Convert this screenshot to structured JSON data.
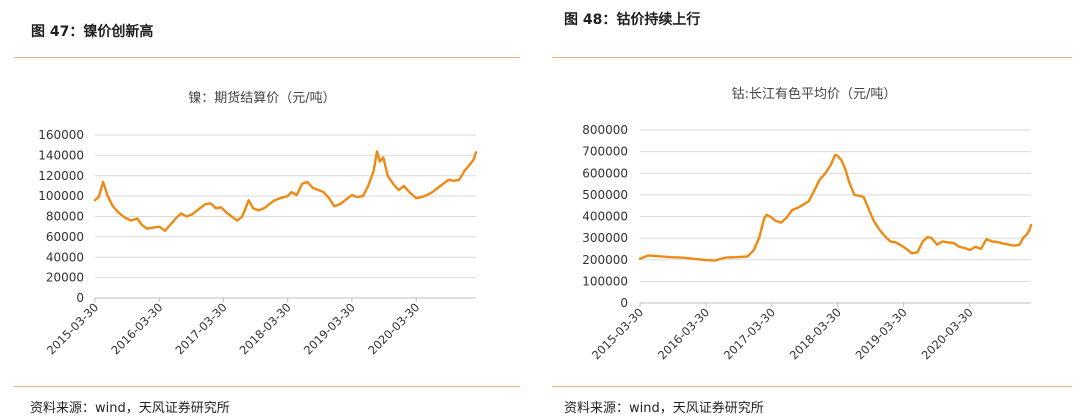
{
  "panels": [
    {
      "figure_title": "图 47：镍价创新高",
      "source": "资料来源：wind，天风证券研究所"
    },
    {
      "figure_title": "图 48：钴价持续上行",
      "source": "资料来源：wind，天风证券研究所"
    }
  ],
  "colors": {
    "series": "#ee8a14",
    "grid": "#d9d9d9",
    "rule": "#f0b27a"
  },
  "chart_data": [
    {
      "type": "line",
      "title": "镍：期货结算价（元/吨）",
      "xlabel": "",
      "ylabel": "",
      "ylim": [
        0,
        160000
      ],
      "yticks": [
        0,
        20000,
        40000,
        60000,
        80000,
        100000,
        120000,
        140000,
        160000
      ],
      "xticks": [
        "2015-03-30",
        "2016-03-30",
        "2017-03-30",
        "2018-03-30",
        "2019-03-30",
        "2020-03-30"
      ],
      "xlim": [
        "2015-03-30",
        "2021-03-05"
      ],
      "grid": true,
      "legend": "none",
      "series": [
        {
          "x": [
            "2015-03-30",
            "2015-04-20",
            "2015-05-15",
            "2015-06-10",
            "2015-07-10",
            "2015-08-10",
            "2015-09-15",
            "2015-10-20",
            "2015-11-25",
            "2015-12-20",
            "2016-01-20",
            "2016-02-20",
            "2016-03-30",
            "2016-05-01",
            "2016-06-01",
            "2016-07-01",
            "2016-08-01",
            "2016-09-01",
            "2016-10-01",
            "2016-11-15",
            "2016-12-15",
            "2017-01-15",
            "2017-02-15",
            "2017-03-15",
            "2017-04-15",
            "2017-05-15",
            "2017-06-15",
            "2017-07-15",
            "2017-08-20",
            "2017-09-15",
            "2017-10-15",
            "2017-11-15",
            "2017-12-15",
            "2018-01-15",
            "2018-02-15",
            "2018-03-30",
            "2018-04-20",
            "2018-05-20",
            "2018-06-20",
            "2018-07-20",
            "2018-08-20",
            "2018-09-20",
            "2018-10-20",
            "2018-11-20",
            "2018-12-20",
            "2019-01-20",
            "2019-02-20",
            "2019-03-30",
            "2019-05-01",
            "2019-06-01",
            "2019-07-01",
            "2019-08-01",
            "2019-08-20",
            "2019-09-05",
            "2019-09-25",
            "2019-10-20",
            "2019-11-20",
            "2019-12-20",
            "2020-01-20",
            "2020-02-20",
            "2020-03-30",
            "2020-04-30",
            "2020-05-30",
            "2020-06-30",
            "2020-07-30",
            "2020-08-30",
            "2020-09-30",
            "2020-10-30",
            "2020-11-30",
            "2020-12-30",
            "2021-01-30",
            "2021-02-20",
            "2021-03-05"
          ],
          "y": [
            96000,
            99000,
            114000,
            100000,
            90000,
            84000,
            79000,
            76000,
            78000,
            72000,
            68000,
            69000,
            70000,
            66000,
            72000,
            78000,
            83000,
            80000,
            82000,
            88000,
            92000,
            93000,
            88000,
            89000,
            84000,
            80000,
            76000,
            80000,
            96000,
            88000,
            86000,
            88000,
            92000,
            96000,
            98000,
            100000,
            104000,
            101000,
            112000,
            114000,
            108000,
            106000,
            104000,
            98000,
            90000,
            92000,
            96000,
            101000,
            99000,
            100000,
            110000,
            125000,
            144000,
            134000,
            138000,
            120000,
            112000,
            106000,
            110000,
            104000,
            98000,
            99000,
            101000,
            104000,
            108000,
            112000,
            116000,
            115000,
            116000,
            125000,
            131000,
            136000,
            143000
          ]
        }
      ]
    },
    {
      "type": "line",
      "title": "钴:长江有色平均价（元/吨）",
      "xlabel": "",
      "ylabel": "",
      "ylim": [
        0,
        800000
      ],
      "yticks": [
        0,
        100000,
        200000,
        300000,
        400000,
        500000,
        600000,
        700000,
        800000
      ],
      "xticks": [
        "2015-03-30",
        "2016-03-30",
        "2017-03-30",
        "2018-03-30",
        "2019-03-30",
        "2020-03-30"
      ],
      "xlim": [
        "2015-03-30",
        "2021-03-05"
      ],
      "grid": true,
      "legend": "none",
      "series": [
        {
          "x": [
            "2015-03-30",
            "2015-05-15",
            "2015-07-15",
            "2015-09-15",
            "2015-11-15",
            "2016-01-15",
            "2016-03-15",
            "2016-05-15",
            "2016-07-15",
            "2016-09-15",
            "2016-11-15",
            "2016-12-20",
            "2017-01-20",
            "2017-02-15",
            "2017-03-01",
            "2017-03-20",
            "2017-04-20",
            "2017-05-20",
            "2017-06-20",
            "2017-07-20",
            "2017-08-20",
            "2017-09-20",
            "2017-10-20",
            "2017-11-20",
            "2017-12-20",
            "2018-01-20",
            "2018-02-20",
            "2018-03-15",
            "2018-03-30",
            "2018-04-20",
            "2018-05-10",
            "2018-06-01",
            "2018-07-01",
            "2018-08-01",
            "2018-08-20",
            "2018-09-15",
            "2018-10-15",
            "2018-11-15",
            "2018-12-15",
            "2019-01-15",
            "2019-02-15",
            "2019-03-20",
            "2019-04-15",
            "2019-05-15",
            "2019-06-15",
            "2019-07-15",
            "2019-08-10",
            "2019-09-01",
            "2019-10-01",
            "2019-11-01",
            "2019-12-01",
            "2020-01-01",
            "2020-02-01",
            "2020-03-01",
            "2020-04-01",
            "2020-05-01",
            "2020-06-01",
            "2020-07-01",
            "2020-08-01",
            "2020-09-01",
            "2020-10-01",
            "2020-11-01",
            "2020-12-01",
            "2021-01-01",
            "2021-01-20",
            "2021-02-10",
            "2021-02-25",
            "2021-03-05"
          ],
          "y": [
            205000,
            220000,
            216000,
            212000,
            210000,
            205000,
            200000,
            196000,
            210000,
            212000,
            215000,
            245000,
            305000,
            390000,
            408000,
            400000,
            380000,
            372000,
            395000,
            430000,
            440000,
            455000,
            470000,
            520000,
            570000,
            600000,
            640000,
            685000,
            680000,
            660000,
            620000,
            560000,
            500000,
            495000,
            490000,
            440000,
            380000,
            340000,
            310000,
            285000,
            280000,
            265000,
            250000,
            230000,
            235000,
            285000,
            305000,
            300000,
            270000,
            285000,
            280000,
            278000,
            260000,
            255000,
            245000,
            260000,
            250000,
            295000,
            285000,
            282000,
            275000,
            270000,
            265000,
            270000,
            300000,
            318000,
            340000,
            360000
          ]
        }
      ]
    }
  ]
}
